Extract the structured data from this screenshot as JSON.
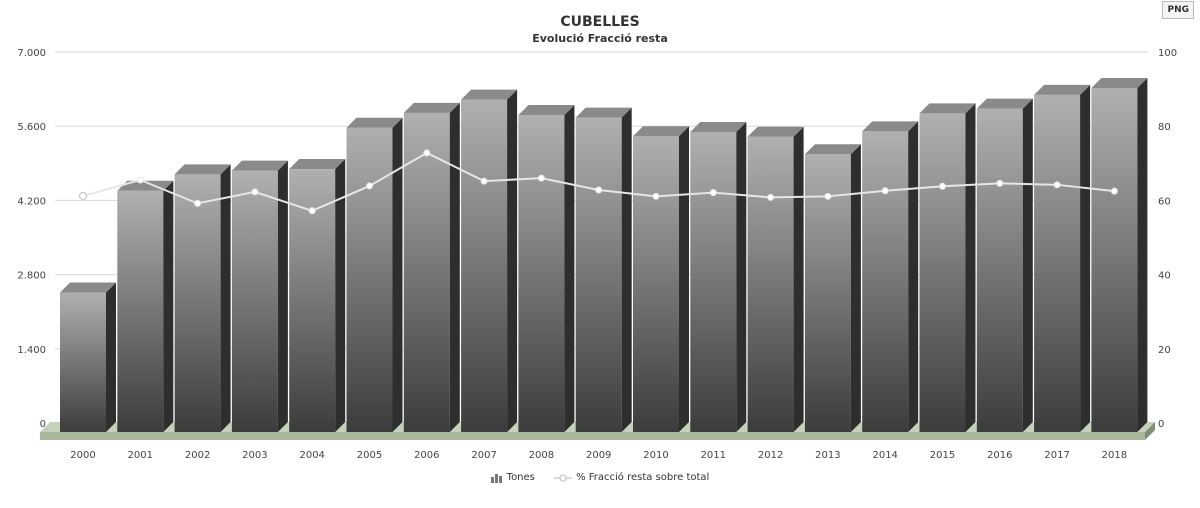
{
  "export_button": {
    "label": "PNG"
  },
  "chart_data": {
    "type": "bar",
    "title": "CUBELLES",
    "subtitle": "Evolució Fracció resta",
    "categories": [
      "2000",
      "2001",
      "2002",
      "2003",
      "2004",
      "2005",
      "2006",
      "2007",
      "2008",
      "2009",
      "2010",
      "2011",
      "2012",
      "2013",
      "2014",
      "2015",
      "2016",
      "2017",
      "2018"
    ],
    "series": [
      {
        "name": "Tones",
        "type": "bar",
        "axis": "left",
        "values": [
          2650,
          4570,
          4880,
          4950,
          4980,
          5760,
          6040,
          6290,
          6000,
          5950,
          5600,
          5680,
          5590,
          5260,
          5690,
          6030,
          6120,
          6380,
          6510
        ]
      },
      {
        "name": "% Fracció resta sobre total",
        "type": "line",
        "axis": "right",
        "values": [
          61.2,
          65.5,
          59.2,
          62.3,
          57.2,
          63.9,
          72.8,
          65.2,
          66.0,
          62.8,
          61.1,
          62.1,
          60.8,
          61.1,
          62.6,
          63.8,
          64.6,
          64.2,
          62.5
        ]
      }
    ],
    "y_left": {
      "min": 0,
      "max": 7000,
      "ticks": [
        "0",
        "1.400",
        "2.800",
        "4.200",
        "5.600",
        "7.000"
      ]
    },
    "y_right": {
      "min": 0,
      "max": 100,
      "ticks": [
        "0",
        "20",
        "40",
        "60",
        "80",
        "100"
      ]
    },
    "grid": true,
    "legend": "bottom-center",
    "colors": {
      "bar_light": "#b0b0b0",
      "bar_dark": "#3c3c3c",
      "bar_side": "#2e2e2e",
      "bar_top": "#8a8a8a",
      "line": "#e6e6e6",
      "base": "#a7b79a",
      "grid": "#d8d8d8"
    }
  },
  "legend": {
    "tones": "Tones",
    "percent": "% Fracció resta sobre total"
  }
}
